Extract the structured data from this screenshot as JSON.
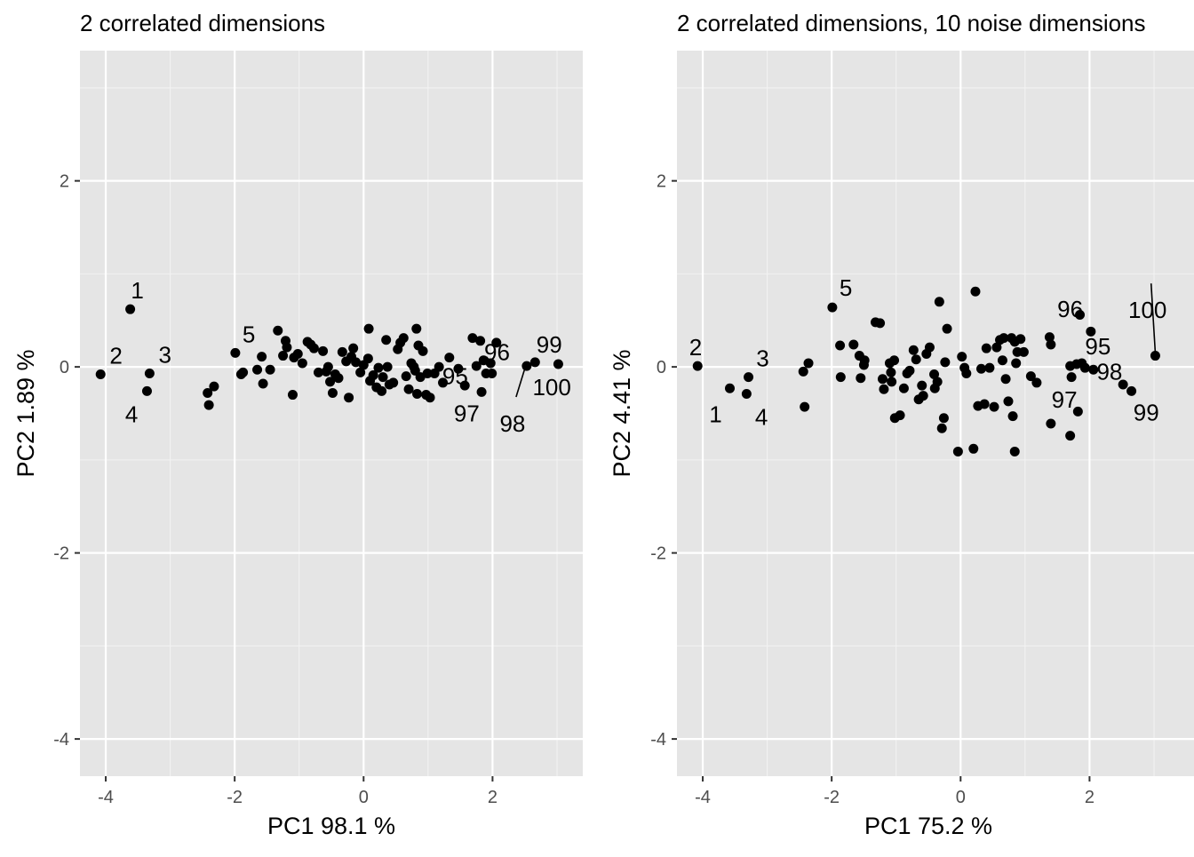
{
  "chart_data": [
    {
      "type": "scatter",
      "title": "2 correlated dimensions",
      "xlabel": "PC1  98.1 %",
      "ylabel": "PC2  1.89 %",
      "xlim": [
        -4.4,
        3.4
      ],
      "ylim": [
        -4.4,
        3.4
      ],
      "xticks": [
        -4,
        -2,
        0,
        2
      ],
      "yticks": [
        -4,
        -2,
        0,
        2
      ],
      "points": [
        [
          -4.08,
          -0.08
        ],
        [
          -3.62,
          0.62
        ],
        [
          -3.32,
          -0.07
        ],
        [
          -3.36,
          -0.26
        ],
        [
          -2.42,
          -0.28
        ],
        [
          -2.4,
          -0.41
        ],
        [
          -2.32,
          -0.21
        ],
        [
          -1.99,
          0.15
        ],
        [
          -1.9,
          -0.08
        ],
        [
          -1.87,
          -0.06
        ],
        [
          -1.65,
          -0.03
        ],
        [
          -1.58,
          0.11
        ],
        [
          -1.56,
          -0.18
        ],
        [
          -1.45,
          -0.03
        ],
        [
          -1.33,
          0.39
        ],
        [
          -1.25,
          0.12
        ],
        [
          -1.21,
          0.28
        ],
        [
          -1.19,
          0.21
        ],
        [
          -1.1,
          -0.3
        ],
        [
          -1.08,
          0.1
        ],
        [
          -1.02,
          0.14
        ],
        [
          -0.95,
          0.04
        ],
        [
          -0.87,
          0.27
        ],
        [
          -0.82,
          0.24
        ],
        [
          -0.77,
          0.2
        ],
        [
          -0.7,
          -0.06
        ],
        [
          -0.63,
          0.17
        ],
        [
          -0.58,
          -0.05
        ],
        [
          -0.55,
          -0.0
        ],
        [
          -0.52,
          -0.16
        ],
        [
          -0.48,
          -0.28
        ],
        [
          -0.44,
          -0.08
        ],
        [
          -0.39,
          -0.12
        ],
        [
          -0.33,
          0.16
        ],
        [
          -0.27,
          0.06
        ],
        [
          -0.23,
          -0.33
        ],
        [
          -0.19,
          0.11
        ],
        [
          -0.16,
          0.2
        ],
        [
          -0.12,
          0.05
        ],
        [
          -0.05,
          -0.06
        ],
        [
          0.0,
          0.02
        ],
        [
          0.07,
          0.09
        ],
        [
          0.08,
          0.41
        ],
        [
          0.1,
          -0.15
        ],
        [
          0.15,
          -0.09
        ],
        [
          0.2,
          -0.22
        ],
        [
          0.23,
          -0.01
        ],
        [
          0.28,
          -0.26
        ],
        [
          0.3,
          -0.11
        ],
        [
          0.35,
          0.29
        ],
        [
          0.37,
          0.0
        ],
        [
          0.4,
          -0.19
        ],
        [
          0.46,
          -0.17
        ],
        [
          0.53,
          0.19
        ],
        [
          0.57,
          0.26
        ],
        [
          0.62,
          0.31
        ],
        [
          0.66,
          -0.1
        ],
        [
          0.7,
          -0.24
        ],
        [
          0.74,
          0.04
        ],
        [
          0.78,
          0.0
        ],
        [
          0.8,
          -0.04
        ],
        [
          0.82,
          0.41
        ],
        [
          0.83,
          -0.29
        ],
        [
          0.85,
          0.23
        ],
        [
          0.88,
          -0.11
        ],
        [
          0.92,
          0.17
        ],
        [
          0.97,
          -0.3
        ],
        [
          0.99,
          -0.07
        ],
        [
          1.03,
          -0.33
        ],
        [
          1.1,
          -0.07
        ],
        [
          1.17,
          0.0
        ],
        [
          1.23,
          -0.17
        ],
        [
          1.33,
          0.1
        ],
        [
          1.47,
          -0.02
        ],
        [
          1.57,
          -0.2
        ],
        [
          1.69,
          0.31
        ],
        [
          1.75,
          0.01
        ],
        [
          1.81,
          0.28
        ],
        [
          1.83,
          -0.27
        ],
        [
          1.86,
          0.07
        ],
        [
          1.9,
          -0.07
        ],
        [
          1.97,
          0.04
        ],
        [
          1.99,
          -0.07
        ],
        [
          2.06,
          0.26
        ],
        [
          2.53,
          0.01
        ],
        [
          2.66,
          0.05
        ],
        [
          3.02,
          0.03
        ]
      ],
      "labels": [
        {
          "text": "1",
          "x": -3.51,
          "y": 0.82
        },
        {
          "text": "2",
          "x": -3.84,
          "y": 0.12
        },
        {
          "text": "3",
          "x": -3.08,
          "y": 0.13
        },
        {
          "text": "4",
          "x": -3.6,
          "y": -0.51
        },
        {
          "text": "5",
          "x": -1.78,
          "y": 0.35
        },
        {
          "text": "95",
          "x": 1.42,
          "y": -0.1
        },
        {
          "text": "96",
          "x": 2.07,
          "y": 0.16
        },
        {
          "text": "97",
          "x": 1.6,
          "y": -0.5
        },
        {
          "text": "98",
          "x": 2.31,
          "y": -0.61,
          "line_to": [
            2.5,
            -0.02
          ]
        },
        {
          "text": "99",
          "x": 2.88,
          "y": 0.24
        },
        {
          "text": "100",
          "x": 2.92,
          "y": -0.22
        }
      ]
    },
    {
      "type": "scatter",
      "title": "2 correlated dimensions, 10 noise dimensions",
      "xlabel": "PC1  75.2 %",
      "ylabel": "PC2  4.41 %",
      "xlim": [
        -4.4,
        3.4
      ],
      "ylim": [
        -4.4,
        3.4
      ],
      "xticks": [
        -4,
        -2,
        0,
        2
      ],
      "yticks": [
        -4,
        -2,
        0,
        2
      ],
      "points": [
        [
          -4.08,
          0.01
        ],
        [
          -3.58,
          -0.23
        ],
        [
          -3.29,
          -0.11
        ],
        [
          -3.32,
          -0.29
        ],
        [
          -2.42,
          -0.43
        ],
        [
          -2.44,
          -0.05
        ],
        [
          -2.36,
          0.04
        ],
        [
          -1.99,
          0.64
        ],
        [
          -1.87,
          0.23
        ],
        [
          -1.86,
          -0.11
        ],
        [
          -1.66,
          0.24
        ],
        [
          -1.57,
          0.12
        ],
        [
          -1.55,
          -0.12
        ],
        [
          -1.49,
          0.07
        ],
        [
          -1.5,
          0.02
        ],
        [
          -1.32,
          0.48
        ],
        [
          -1.25,
          0.47
        ],
        [
          -1.21,
          -0.13
        ],
        [
          -1.19,
          -0.24
        ],
        [
          -1.1,
          0.04
        ],
        [
          -1.08,
          -0.06
        ],
        [
          -1.07,
          -0.16
        ],
        [
          -1.03,
          0.07
        ],
        [
          -1.02,
          -0.55
        ],
        [
          -0.94,
          -0.52
        ],
        [
          -0.88,
          -0.23
        ],
        [
          -0.83,
          -0.07
        ],
        [
          -0.79,
          -0.04
        ],
        [
          -0.73,
          0.18
        ],
        [
          -0.69,
          0.08
        ],
        [
          -0.65,
          -0.35
        ],
        [
          -0.6,
          -0.2
        ],
        [
          -0.58,
          -0.31
        ],
        [
          -0.53,
          0.14
        ],
        [
          -0.48,
          0.21
        ],
        [
          -0.41,
          -0.08
        ],
        [
          -0.4,
          -0.23
        ],
        [
          -0.36,
          -0.16
        ],
        [
          -0.33,
          0.7
        ],
        [
          -0.29,
          -0.66
        ],
        [
          -0.26,
          -0.55
        ],
        [
          -0.24,
          0.05
        ],
        [
          -0.21,
          0.41
        ],
        [
          -0.04,
          -0.91
        ],
        [
          0.02,
          0.11
        ],
        [
          0.06,
          -0.01
        ],
        [
          0.09,
          -0.07
        ],
        [
          0.2,
          -0.88
        ],
        [
          0.23,
          0.81
        ],
        [
          0.27,
          -0.42
        ],
        [
          0.32,
          -0.02
        ],
        [
          0.37,
          -0.4
        ],
        [
          0.4,
          0.2
        ],
        [
          0.45,
          -0.01
        ],
        [
          0.52,
          -0.43
        ],
        [
          0.56,
          0.21
        ],
        [
          0.61,
          0.29
        ],
        [
          0.65,
          0.07
        ],
        [
          0.67,
          0.31
        ],
        [
          0.7,
          -0.13
        ],
        [
          0.74,
          -0.37
        ],
        [
          0.79,
          0.31
        ],
        [
          0.81,
          -0.53
        ],
        [
          0.84,
          0.27
        ],
        [
          0.84,
          -0.91
        ],
        [
          0.86,
          0.04
        ],
        [
          0.88,
          0.16
        ],
        [
          0.93,
          0.3
        ],
        [
          0.98,
          0.16
        ],
        [
          1.09,
          -0.1
        ],
        [
          1.18,
          -0.17
        ],
        [
          1.38,
          0.32
        ],
        [
          1.4,
          0.24
        ],
        [
          1.4,
          -0.61
        ],
        [
          1.7,
          0.01
        ],
        [
          1.7,
          -0.74
        ],
        [
          1.72,
          -0.11
        ],
        [
          1.8,
          0.03
        ],
        [
          1.82,
          -0.48
        ],
        [
          1.85,
          0.56
        ],
        [
          1.88,
          0.04
        ],
        [
          1.93,
          -0.01
        ],
        [
          2.02,
          0.38
        ],
        [
          2.06,
          -0.03
        ],
        [
          2.52,
          -0.19
        ],
        [
          2.65,
          -0.26
        ],
        [
          3.02,
          0.12
        ]
      ],
      "labels": [
        {
          "text": "1",
          "x": -3.8,
          "y": -0.51
        },
        {
          "text": "2",
          "x": -4.11,
          "y": 0.21
        },
        {
          "text": "3",
          "x": -3.07,
          "y": 0.09
        },
        {
          "text": "4",
          "x": -3.09,
          "y": -0.54
        },
        {
          "text": "5",
          "x": -1.78,
          "y": 0.85
        },
        {
          "text": "95",
          "x": 2.13,
          "y": 0.22
        },
        {
          "text": "96",
          "x": 1.7,
          "y": 0.62
        },
        {
          "text": "97",
          "x": 1.61,
          "y": -0.35
        },
        {
          "text": "98",
          "x": 2.31,
          "y": -0.05
        },
        {
          "text": "99",
          "x": 2.88,
          "y": -0.49
        },
        {
          "text": "100",
          "x": 2.9,
          "y": 0.61,
          "line_to": [
            3.02,
            0.15
          ]
        }
      ]
    }
  ]
}
